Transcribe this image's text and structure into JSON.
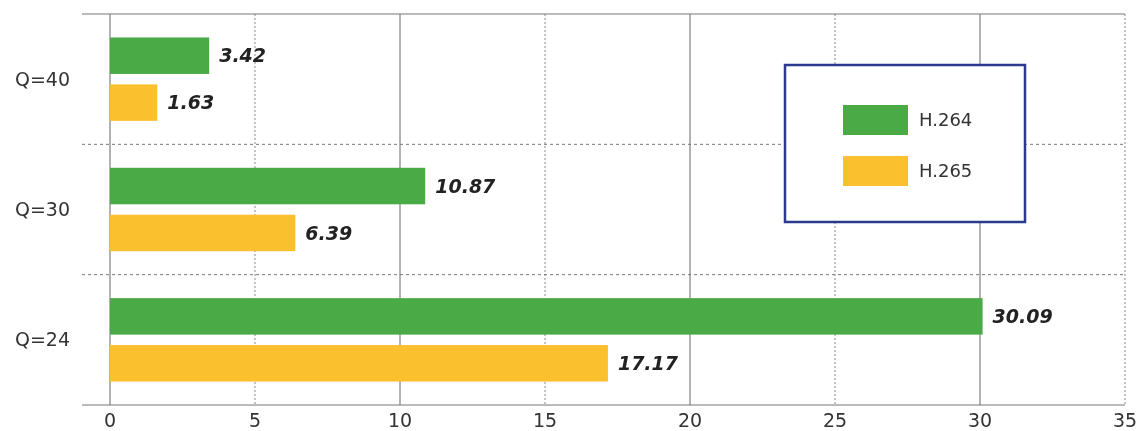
{
  "chart_data": {
    "type": "bar",
    "orientation": "horizontal",
    "categories": [
      "Q=40",
      "Q=30",
      "Q=24"
    ],
    "series": [
      {
        "name": "H.264",
        "color": "#4aaa46",
        "values": [
          3.42,
          10.87,
          30.09
        ]
      },
      {
        "name": "H.265",
        "color": "#fbc02d",
        "values": [
          1.63,
          6.39,
          17.17
        ]
      }
    ],
    "xlim": [
      0,
      35
    ],
    "xticks": [
      0,
      5,
      10,
      15,
      20,
      25,
      30,
      35
    ],
    "grid": "x",
    "legend": "right",
    "data_labels": true
  }
}
